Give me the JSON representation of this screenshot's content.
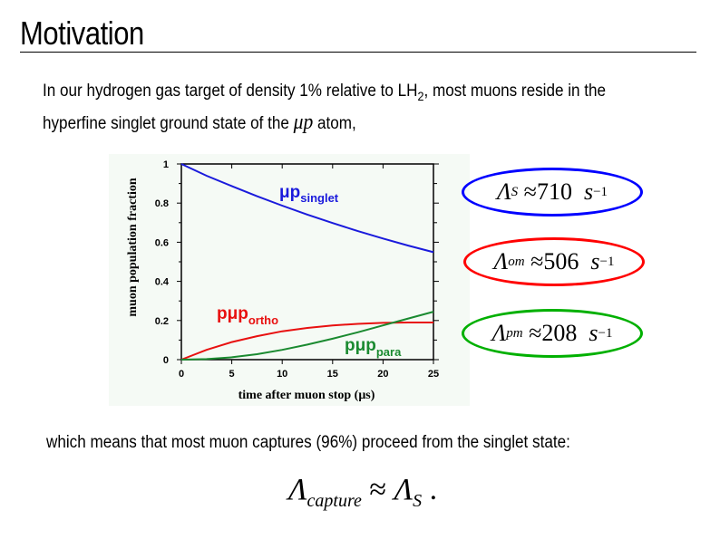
{
  "slide": {
    "title": "Motivation",
    "intro_line1_a": "In our hydrogen gas target of density 1% relative to LH",
    "intro_line1_sub": "2",
    "intro_line1_b": ", most muons reside in the",
    "intro_line2_a": "hyperfine singlet ground state of the ",
    "intro_line2_math": "μp",
    "intro_line2_b": " atom,",
    "conclusion": "which means that most muon captures (96%) proceed from the singlet state:",
    "equation": {
      "lhs": "Λ",
      "lhs_sub": "capture",
      "op": "≈",
      "rhs": "Λ",
      "rhs_sub": "S",
      "end": " ."
    }
  },
  "rates": [
    {
      "symbol": "Λ",
      "sub": "S",
      "approx": "≈",
      "value": "710",
      "unit": "s",
      "exp": "−1",
      "color": "#0000ff"
    },
    {
      "symbol": "Λ",
      "sub": "om",
      "approx": "≈",
      "value": "506",
      "unit": "s",
      "exp": "−1",
      "color": "#ff0000"
    },
    {
      "symbol": "Λ",
      "sub": "pm",
      "approx": "≈",
      "value": "208",
      "unit": "s",
      "exp": "−1",
      "color": "#00b000"
    }
  ],
  "chart_data": {
    "type": "line",
    "xlabel": "time after muon stop (μs)",
    "ylabel": "muon population fraction",
    "xlim": [
      0,
      25
    ],
    "ylim": [
      0,
      1
    ],
    "xticks": [
      "0",
      "5",
      "10",
      "15",
      "20",
      "25"
    ],
    "yticks": [
      "0",
      "0.2",
      "0.4",
      "0.6",
      "0.8",
      "1"
    ],
    "x": [
      0,
      2.5,
      5,
      7.5,
      10,
      12.5,
      15,
      17.5,
      20,
      22.5,
      25
    ],
    "series": [
      {
        "name": "μp",
        "sub": "singlet",
        "color": "#1a1adc",
        "values": [
          1,
          0.94,
          0.887,
          0.835,
          0.787,
          0.741,
          0.698,
          0.657,
          0.619,
          0.583,
          0.549
        ]
      },
      {
        "name": "pμp",
        "sub": "ortho",
        "color": "#e81010",
        "values": [
          0,
          0.05,
          0.09,
          0.12,
          0.145,
          0.162,
          0.175,
          0.183,
          0.188,
          0.19,
          0.19
        ]
      },
      {
        "name": "pμp",
        "sub": "para",
        "color": "#1a8a30",
        "values": [
          0,
          0.003,
          0.012,
          0.028,
          0.05,
          0.077,
          0.107,
          0.14,
          0.175,
          0.21,
          0.245
        ]
      }
    ]
  }
}
